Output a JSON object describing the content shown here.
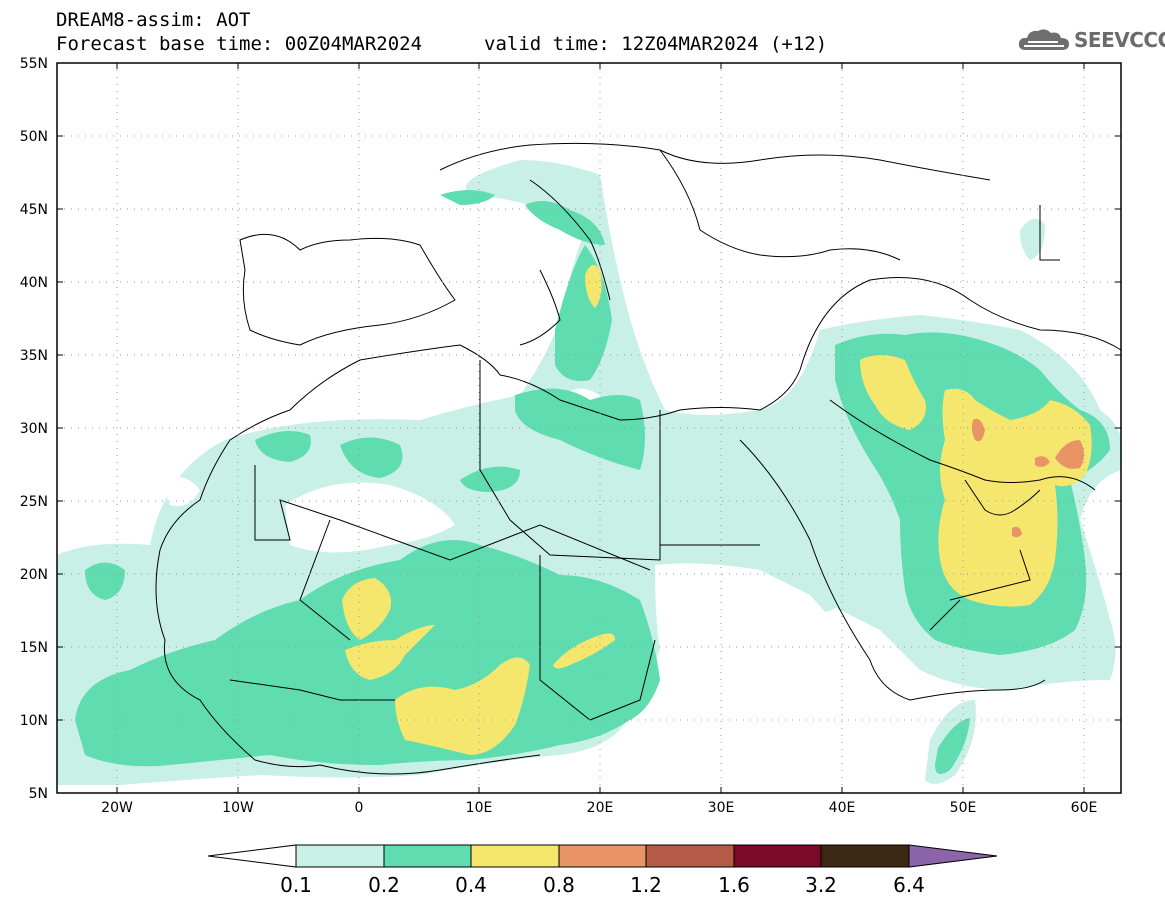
{
  "header": {
    "line1": "DREAM8-assim: AOT",
    "line2_left": "Forecast base time: 00Z04MAR2024",
    "line2_right": "valid time: 12Z04MAR2024 (+12)",
    "logo_text": "SEEVCCC"
  },
  "map": {
    "lat_labels": [
      "55N",
      "50N",
      "45N",
      "40N",
      "35N",
      "30N",
      "25N",
      "20N",
      "15N",
      "10N",
      "5N"
    ],
    "lon_labels": [
      "20W",
      "10W",
      "0",
      "10E",
      "20E",
      "30E",
      "40E",
      "50E",
      "60E"
    ]
  },
  "colorbar": {
    "ticks": [
      "0.1",
      "0.2",
      "0.4",
      "0.8",
      "1.2",
      "1.6",
      "3.2",
      "6.4"
    ],
    "colors": [
      "#c8f0e6",
      "#5fdcb0",
      "#f5e66e",
      "#e89464",
      "#b45a46",
      "#7a0a28",
      "#3c2814",
      "#8c64aa"
    ]
  },
  "colors": {
    "aot_01_02": "#c8f0e6",
    "aot_02_04": "#5fdcb0",
    "aot_04_08": "#f5e66e",
    "aot_08_12": "#e89464"
  }
}
